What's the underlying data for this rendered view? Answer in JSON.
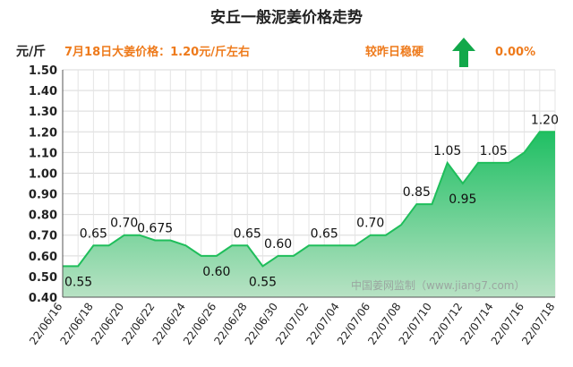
{
  "header": {
    "title": "安丘一般泥姜价格走势",
    "unit": "元/斤",
    "price_line": "7月18日大姜价格：1.20元/斤左右",
    "compare_label": "较昨日稳硬",
    "change_pct": "0.00%",
    "trend_icon": "up-arrow-icon"
  },
  "watermark": "中国姜网监制（www.jiang7.com）",
  "colors": {
    "accent_orange": "#ee7a1b",
    "area_top": "#1fbf63",
    "area_bottom": "#b8e2c4",
    "line": "#1fbe5b",
    "arrow": "#12a84a"
  },
  "chart_data": {
    "type": "area",
    "title": "安丘一般泥姜价格走势",
    "ylabel": "元/斤",
    "xlabel": "",
    "ylim": [
      0.4,
      1.5
    ],
    "ytick_step": 0.1,
    "grid": true,
    "x": [
      "22/06/16",
      "22/06/17",
      "22/06/18",
      "22/06/19",
      "22/06/20",
      "22/06/21",
      "22/06/22",
      "22/06/23",
      "22/06/24",
      "22/06/25",
      "22/06/26",
      "22/06/27",
      "22/06/28",
      "22/06/29",
      "22/06/30",
      "22/07/01",
      "22/07/02",
      "22/07/03",
      "22/07/04",
      "22/07/05",
      "22/07/06",
      "22/07/07",
      "22/07/08",
      "22/07/09",
      "22/07/10",
      "22/07/11",
      "22/07/12",
      "22/07/13",
      "22/07/14",
      "22/07/15",
      "22/07/16",
      "22/07/17",
      "22/07/18"
    ],
    "xtick_labels": [
      "22/06/16",
      "22/06/18",
      "22/06/20",
      "22/06/22",
      "22/06/24",
      "22/06/26",
      "22/06/28",
      "22/06/30",
      "22/07/02",
      "22/07/04",
      "22/07/06",
      "22/07/08",
      "22/07/10",
      "22/07/12",
      "22/07/14",
      "22/07/16",
      "22/07/18"
    ],
    "values": [
      0.55,
      0.55,
      0.65,
      0.65,
      0.7,
      0.7,
      0.675,
      0.675,
      0.65,
      0.6,
      0.6,
      0.65,
      0.65,
      0.55,
      0.6,
      0.6,
      0.65,
      0.65,
      0.65,
      0.65,
      0.7,
      0.7,
      0.75,
      0.85,
      0.85,
      1.05,
      0.95,
      1.05,
      1.05,
      1.05,
      1.1,
      1.2,
      1.2
    ],
    "annotations": [
      {
        "x": "22/06/16",
        "value": 0.55,
        "text": "0.55",
        "pos": "below"
      },
      {
        "x": "22/06/18",
        "value": 0.65,
        "text": "0.65",
        "pos": "above"
      },
      {
        "x": "22/06/20",
        "value": 0.7,
        "text": "0.70",
        "pos": "above"
      },
      {
        "x": "22/06/22",
        "value": 0.675,
        "text": "0.675",
        "pos": "above"
      },
      {
        "x": "22/06/26",
        "value": 0.6,
        "text": "0.60",
        "pos": "below"
      },
      {
        "x": "22/06/28",
        "value": 0.65,
        "text": "0.65",
        "pos": "above"
      },
      {
        "x": "22/06/29",
        "value": 0.55,
        "text": "0.55",
        "pos": "below"
      },
      {
        "x": "22/06/30",
        "value": 0.6,
        "text": "0.60",
        "pos": "above"
      },
      {
        "x": "22/07/03",
        "value": 0.65,
        "text": "0.65",
        "pos": "above"
      },
      {
        "x": "22/07/06",
        "value": 0.7,
        "text": "0.70",
        "pos": "above"
      },
      {
        "x": "22/07/09",
        "value": 0.85,
        "text": "0.85",
        "pos": "above"
      },
      {
        "x": "22/07/11",
        "value": 1.05,
        "text": "1.05",
        "pos": "above"
      },
      {
        "x": "22/07/12",
        "value": 0.95,
        "text": "0.95",
        "pos": "below"
      },
      {
        "x": "22/07/14",
        "value": 1.05,
        "text": "1.05",
        "pos": "above"
      },
      {
        "x": "22/07/18",
        "value": 1.2,
        "text": "1.20",
        "pos": "above"
      }
    ]
  }
}
